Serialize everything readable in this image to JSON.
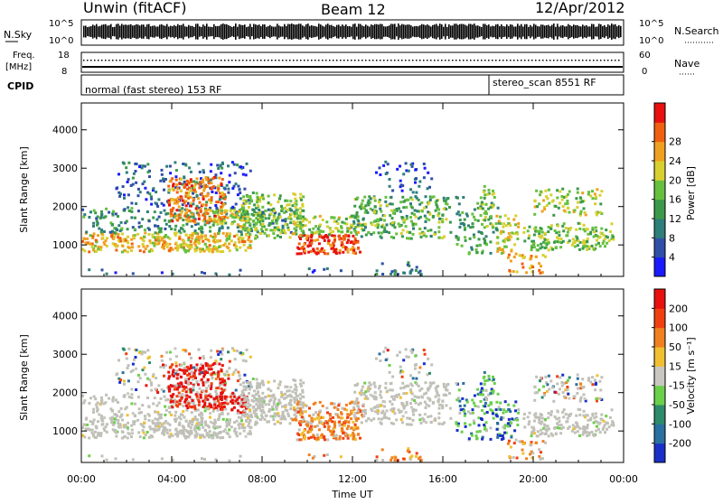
{
  "header": {
    "station": "Unwin (fitACF)",
    "beam": "Beam 12",
    "date": "12/Apr/2012"
  },
  "top_panels": {
    "nsky_label": "N.Sky",
    "nsky_ticks": [
      "10^5",
      "10^0"
    ],
    "nsearch_label": "N.Search",
    "freq_label_1": "Freq.",
    "freq_label_2": "[MHz]",
    "freq_ticks": [
      "18",
      "8"
    ],
    "nave_ticks": [
      "60",
      "0"
    ],
    "nave_label": "Nave",
    "cpid_label": "CPID",
    "cpid_1": "normal (fast stereo) 153 RF",
    "cpid_2": "stereo_scan 8551 RF"
  },
  "chart_data": [
    {
      "type": "heatmap",
      "panel": "power",
      "ylabel": "Slant Range [km]",
      "xlabel": "Time UT",
      "x_ticks": [
        "00:00",
        "04:00",
        "08:00",
        "12:00",
        "16:00",
        "20:00",
        "00:00"
      ],
      "y_ticks": [
        "1000",
        "2000",
        "3000",
        "4000"
      ],
      "ylim": [
        180,
        4700
      ],
      "xlim_hours": [
        0,
        24
      ],
      "colorbar_label": "Power [dB]",
      "colorbar_ticks": [
        "4",
        "8",
        "12",
        "16",
        "20",
        "24",
        "28"
      ],
      "colorbar_colors": [
        "#1a1aff",
        "#2f4fa8",
        "#2e7e7a",
        "#3a9a4a",
        "#66c03e",
        "#d8d030",
        "#f0a020",
        "#f06010",
        "#e81010"
      ]
    },
    {
      "type": "heatmap",
      "panel": "velocity",
      "ylabel": "Slant Range [km]",
      "xlabel": "Time UT",
      "x_ticks": [
        "00:00",
        "04:00",
        "08:00",
        "12:00",
        "16:00",
        "20:00",
        "00:00"
      ],
      "y_ticks": [
        "1000",
        "2000",
        "3000",
        "4000"
      ],
      "ylim": [
        180,
        4700
      ],
      "xlim_hours": [
        0,
        24
      ],
      "colorbar_label": "Velocity [m s⁻¹]",
      "colorbar_ticks": [
        "200",
        "100",
        "50",
        "15",
        "-15",
        "-50",
        "-100",
        "-200"
      ],
      "colorbar_colors": [
        "#1a30c8",
        "#2a70a0",
        "#2e8a6a",
        "#6ad04a",
        "#c8c8c0",
        "#f0c030",
        "#f08020",
        "#f04010",
        "#e81010"
      ]
    }
  ],
  "colors": {
    "ground_scatter": "#c0c0b8",
    "axis": "#000000"
  }
}
